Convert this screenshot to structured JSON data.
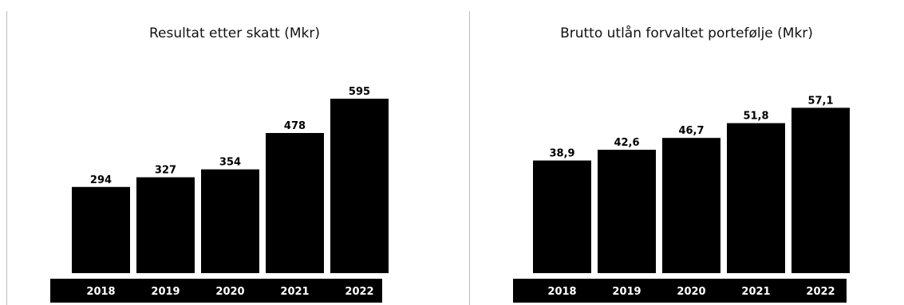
{
  "colors": {
    "bar": "#000000",
    "axis_band": "#000000",
    "axis_text": "#ffffff",
    "background": "#ffffff"
  },
  "chart_data": [
    {
      "type": "bar",
      "title": "Resultat etter skatt (Mkr)",
      "categories": [
        "2018",
        "2019",
        "2020",
        "2021",
        "2022"
      ],
      "values": [
        294,
        327,
        354,
        478,
        595
      ],
      "value_labels": [
        "294",
        "327",
        "354",
        "478",
        "595"
      ],
      "xlabel": "",
      "ylabel": "",
      "ylim": [
        0,
        660
      ],
      "grid": false,
      "legend": "none"
    },
    {
      "type": "bar",
      "title": "Brutto utlån forvaltet portefølje (Mkr)",
      "categories": [
        "2018",
        "2019",
        "2020",
        "2021",
        "2022"
      ],
      "values": [
        38.9,
        42.6,
        46.7,
        51.8,
        57.1
      ],
      "value_labels": [
        "38,9",
        "42,6",
        "46,7",
        "51,8",
        "57,1"
      ],
      "xlabel": "",
      "ylabel": "",
      "ylim": [
        0,
        66
      ],
      "grid": false,
      "legend": "none"
    }
  ]
}
